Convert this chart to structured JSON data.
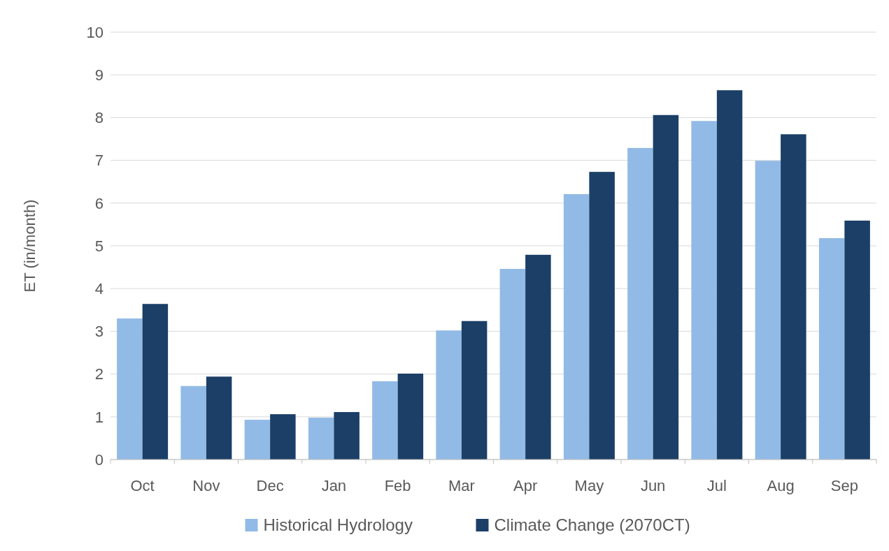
{
  "chart_data": {
    "type": "bar",
    "ylabel": "ET (in/month)",
    "categories": [
      "Oct",
      "Nov",
      "Dec",
      "Jan",
      "Feb",
      "Mar",
      "Apr",
      "May",
      "Jun",
      "Jul",
      "Aug",
      "Sep"
    ],
    "series": [
      {
        "name": "Historical Hydrology",
        "color": "#92bae6",
        "values": [
          3.3,
          1.72,
          0.93,
          0.98,
          1.83,
          3.02,
          4.46,
          6.21,
          7.29,
          7.92,
          6.99,
          5.18
        ]
      },
      {
        "name": "Climate Change (2070CT)",
        "color": "#1b3f66",
        "values": [
          3.64,
          1.94,
          1.06,
          1.11,
          2.01,
          3.24,
          4.79,
          6.73,
          8.06,
          8.64,
          7.61,
          5.59
        ]
      }
    ],
    "ylim": [
      0,
      10
    ],
    "yticks": [
      0,
      1,
      2,
      3,
      4,
      5,
      6,
      7,
      8,
      9,
      10
    ],
    "grid": "y",
    "legend": "bottom"
  }
}
